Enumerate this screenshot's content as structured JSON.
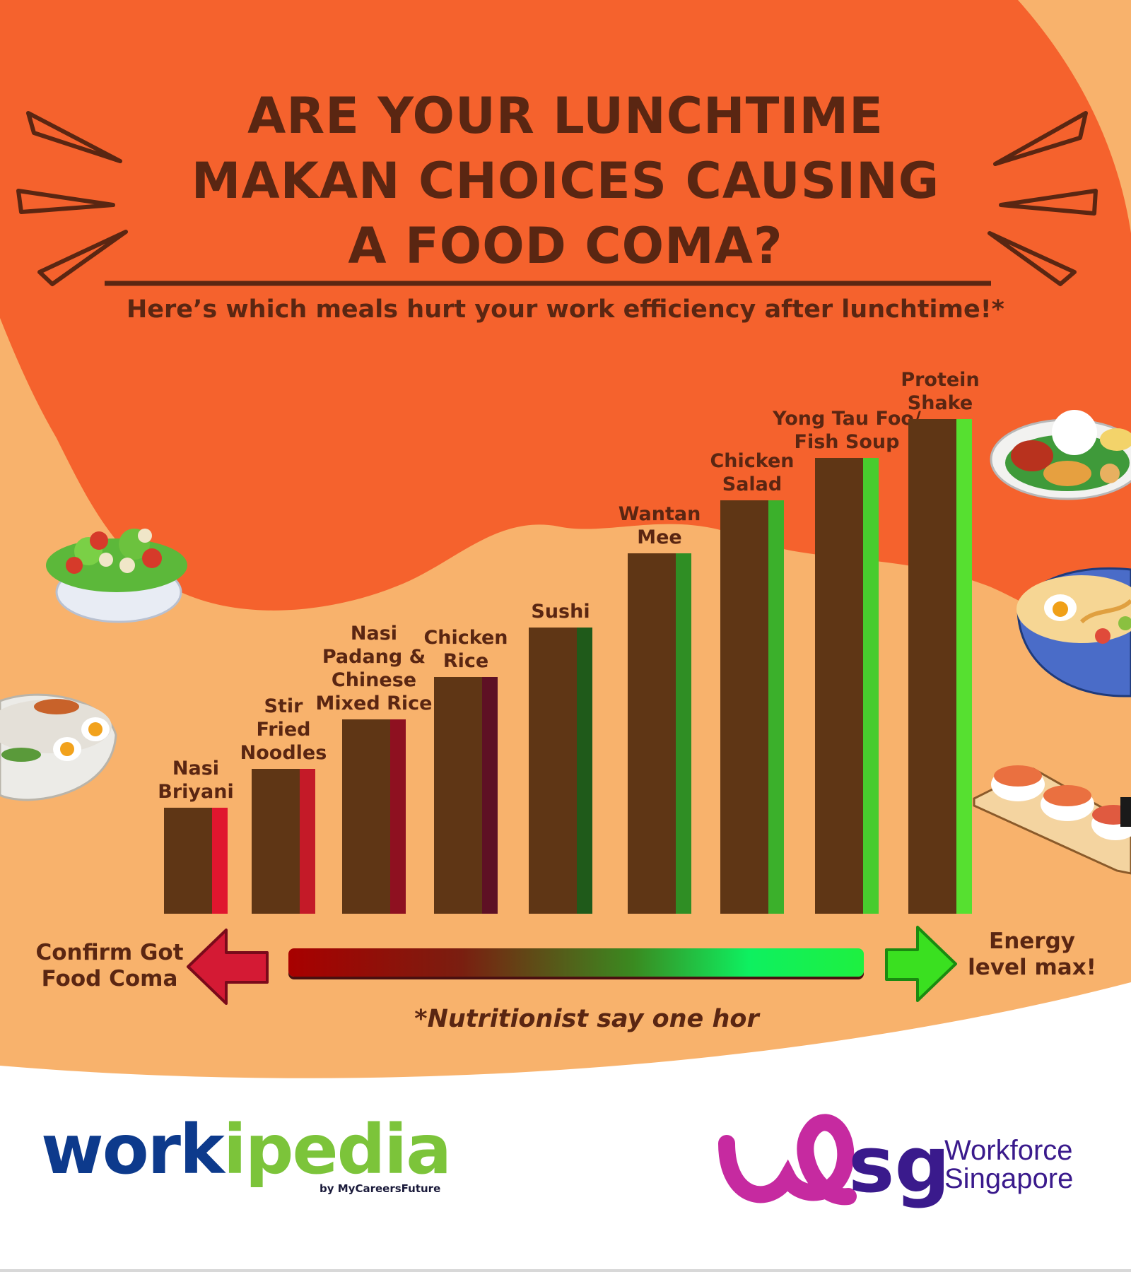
{
  "title_lines": [
    "ARE YOUR LUNCHTIME",
    "MAKAN CHOICES CAUSING",
    "A FOOD COMA?"
  ],
  "subtitle": "Here’s which meals hurt your work efficiency after lunchtime!*",
  "legend": {
    "left": [
      "Confirm Got",
      "Food Coma"
    ],
    "right": [
      "Energy",
      "level max!"
    ]
  },
  "footnote": "*Nutritionist say one hor",
  "logos": {
    "workipedia_a": "work",
    "workipedia_b": "ipedia",
    "workipedia_by": "by MyCareersFuture",
    "wsg_lines": [
      "Workforce",
      "Singapore"
    ]
  },
  "colors": {
    "background_orange": "#f8b26c",
    "blob_orange": "#f5622d",
    "bar_brown": "#5f3615",
    "text_brown": "#5a2612"
  },
  "chart_data": {
    "type": "bar",
    "title": "",
    "xlabel": "",
    "ylabel": "",
    "categories": [
      [
        "Nasi",
        "Briyani"
      ],
      [
        "Stir",
        "Fried",
        "Noodles"
      ],
      [
        "Nasi",
        "Padang &",
        "Chinese",
        "Mixed Rice"
      ],
      [
        "Chicken",
        "Rice"
      ],
      [
        "Sushi"
      ],
      [
        "Wantan",
        "Mee"
      ],
      [
        "Chicken",
        "Salad"
      ],
      [
        "Yong Tau Foo/",
        "Fish Soup"
      ],
      [
        "Protein",
        "Shake"
      ]
    ],
    "values": [
      1.5,
      2.05,
      2.75,
      3.35,
      4.05,
      5.1,
      5.85,
      6.45,
      7.0
    ],
    "accent_colors": [
      "#e0162e",
      "#c41a28",
      "#8e1020",
      "#5e1024",
      "#1f5a1a",
      "#2f8e24",
      "#3bb02b",
      "#48cc2e",
      "#56e030"
    ],
    "ylim": [
      0,
      7.0
    ],
    "grid": false,
    "legend": "bottom gradient scale"
  }
}
